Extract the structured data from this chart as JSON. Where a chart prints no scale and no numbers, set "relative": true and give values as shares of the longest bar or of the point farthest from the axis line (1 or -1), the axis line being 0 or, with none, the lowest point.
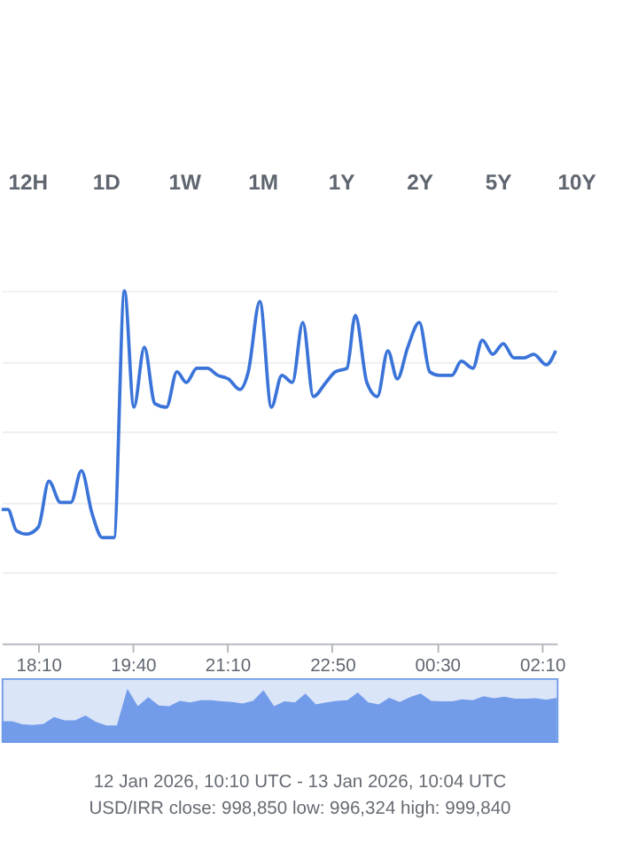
{
  "chart_data": [
    {
      "type": "line",
      "relative": true,
      "color": "#3b74d9",
      "grid": "y",
      "line_style": "solid",
      "marker": "none",
      "annotations": [
        "12H",
        "1D",
        "1W",
        "1M",
        "1Y",
        "2Y",
        "5Y",
        "10Y"
      ],
      "xlim": [
        "2026-01-12T17:35",
        "2026-01-13T02:24"
      ],
      "xticks": [
        {
          "value": "2026-01-12T18:10",
          "label": "18:10"
        },
        {
          "value": "2026-01-12T19:40",
          "label": "19:40"
        },
        {
          "value": "2026-01-12T21:10",
          "label": "21:10"
        },
        {
          "value": "2026-01-12T22:50",
          "label": "22:50"
        },
        {
          "value": "2026-01-13T00:30",
          "label": "00:30"
        },
        {
          "value": "2026-01-13T02:10",
          "label": "02:10"
        }
      ],
      "x": [
        "2026-01-12T17:35",
        "2026-01-12T17:41",
        "2026-01-12T17:49",
        "2026-01-12T17:59",
        "2026-01-12T18:10",
        "2026-01-12T18:20",
        "2026-01-12T18:31",
        "2026-01-12T18:41",
        "2026-01-12T18:51",
        "2026-01-12T19:01",
        "2026-01-12T19:11",
        "2026-01-12T19:22",
        "2026-01-12T19:32",
        "2026-01-12T19:41",
        "2026-01-12T19:51",
        "2026-01-12T20:01",
        "2026-01-12T20:12",
        "2026-01-12T20:22",
        "2026-01-12T20:31",
        "2026-01-12T20:41",
        "2026-01-12T20:51",
        "2026-01-12T21:01",
        "2026-01-12T21:11",
        "2026-01-12T21:22",
        "2026-01-12T21:30",
        "2026-01-12T21:41",
        "2026-01-12T21:52",
        "2026-01-12T22:02",
        "2026-01-12T22:12",
        "2026-01-12T22:22",
        "2026-01-12T22:32",
        "2026-01-12T22:44",
        "2026-01-12T22:53",
        "2026-01-12T23:04",
        "2026-01-12T23:12",
        "2026-01-12T23:23",
        "2026-01-12T23:33",
        "2026-01-12T23:43",
        "2026-01-12T23:52",
        "2026-01-13T00:02",
        "2026-01-13T00:13",
        "2026-01-13T00:23",
        "2026-01-13T00:32",
        "2026-01-13T00:44",
        "2026-01-13T00:53",
        "2026-01-13T01:04",
        "2026-01-13T01:13",
        "2026-01-13T01:23",
        "2026-01-13T01:33",
        "2026-01-13T01:43",
        "2026-01-13T01:53",
        "2026-01-13T02:02",
        "2026-01-13T02:14",
        "2026-01-13T02:23"
      ],
      "values": [
        0.38,
        0.38,
        0.32,
        0.31,
        0.33,
        0.46,
        0.4,
        0.4,
        0.49,
        0.37,
        0.3,
        0.3,
        1.0,
        0.67,
        0.84,
        0.68,
        0.67,
        0.77,
        0.74,
        0.78,
        0.78,
        0.76,
        0.75,
        0.72,
        0.77,
        0.97,
        0.67,
        0.76,
        0.74,
        0.91,
        0.7,
        0.74,
        0.77,
        0.78,
        0.93,
        0.74,
        0.7,
        0.83,
        0.75,
        0.84,
        0.91,
        0.77,
        0.76,
        0.76,
        0.8,
        0.78,
        0.86,
        0.82,
        0.85,
        0.81,
        0.81,
        0.82,
        0.79,
        0.83
      ]
    },
    {
      "type": "area",
      "relative": true,
      "color": "#729cea",
      "annotations": [
        "12 Jan 2026, 10:10 UTC - 13 Jan 2026, 10:04 UTC",
        "USD/IRR close: 998,850 low: 996,324 high: 999,840"
      ],
      "categories": [
        null,
        null,
        null,
        null,
        null,
        null,
        null,
        null,
        null,
        null,
        null,
        null,
        null,
        null,
        null,
        null,
        null,
        null,
        null,
        null,
        null,
        null,
        null,
        null,
        null,
        null,
        null,
        null,
        null,
        null,
        null,
        null,
        null,
        null,
        null,
        null,
        null,
        null,
        null,
        null,
        null,
        null,
        null,
        null,
        null,
        null,
        null,
        null,
        null,
        null,
        null,
        null,
        null,
        null
      ],
      "values": [
        0.38,
        0.38,
        0.32,
        0.31,
        0.33,
        0.46,
        0.4,
        0.4,
        0.49,
        0.37,
        0.3,
        0.3,
        1.0,
        0.67,
        0.84,
        0.68,
        0.67,
        0.77,
        0.74,
        0.78,
        0.78,
        0.76,
        0.75,
        0.72,
        0.77,
        0.97,
        0.67,
        0.76,
        0.74,
        0.91,
        0.7,
        0.74,
        0.77,
        0.78,
        0.93,
        0.74,
        0.7,
        0.83,
        0.75,
        0.84,
        0.91,
        0.77,
        0.76,
        0.76,
        0.8,
        0.78,
        0.86,
        0.82,
        0.85,
        0.81,
        0.81,
        0.82,
        0.79,
        0.83
      ]
    }
  ]
}
